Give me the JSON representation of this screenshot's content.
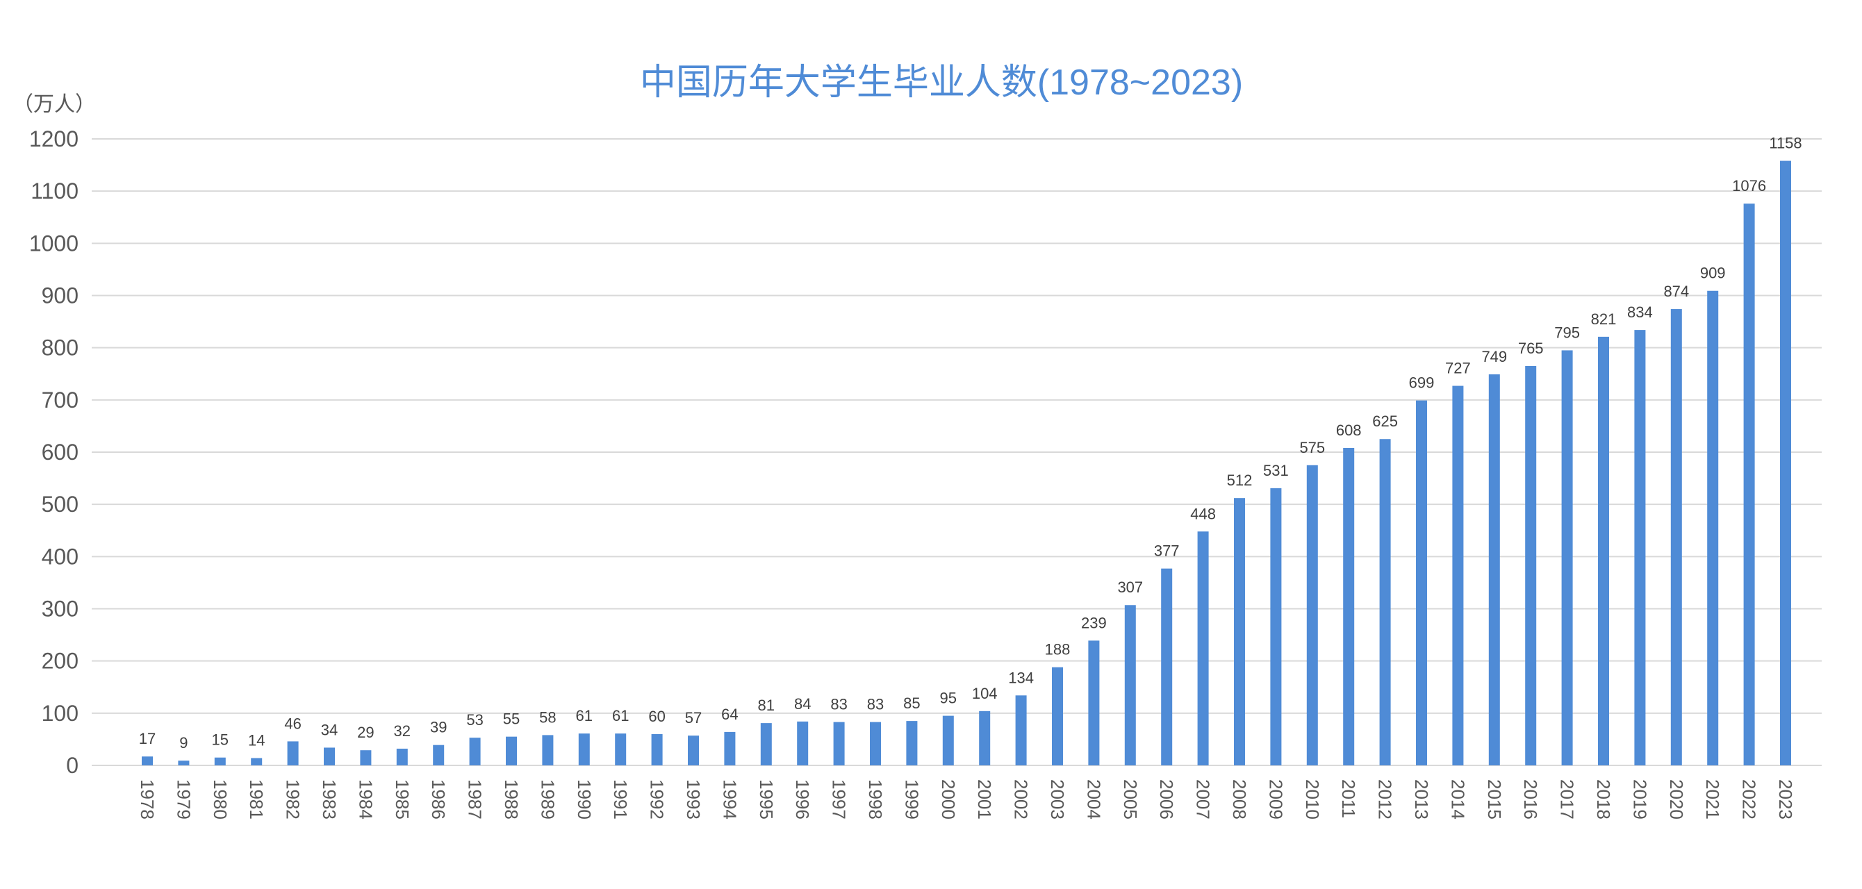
{
  "chart_data": {
    "type": "bar",
    "title": "中国历年大学生毕业人数(1978~2023)",
    "ylabel": "（万人）",
    "xlabel": "",
    "ylim": [
      0,
      1200
    ],
    "yticks": [
      0,
      100,
      200,
      300,
      400,
      500,
      600,
      700,
      800,
      900,
      1000,
      1100,
      1200
    ],
    "grid": true,
    "legend": "none",
    "colors": {
      "bar": "#4f8bd6",
      "title": "#4f8bd6",
      "grid": "#d9d9d9",
      "tick_text": "#595959",
      "data_label": "#404040"
    },
    "categories": [
      "1978",
      "1979",
      "1980",
      "1981",
      "1982",
      "1983",
      "1984",
      "1985",
      "1986",
      "1987",
      "1988",
      "1989",
      "1990",
      "1991",
      "1992",
      "1993",
      "1994",
      "1995",
      "1996",
      "1997",
      "1998",
      "1999",
      "2000",
      "2001",
      "2002",
      "2003",
      "2004",
      "2005",
      "2006",
      "2007",
      "2008",
      "2009",
      "2010",
      "2011",
      "2012",
      "2013",
      "2014",
      "2015",
      "2016",
      "2017",
      "2018",
      "2019",
      "2020",
      "2021",
      "2022",
      "2023"
    ],
    "values": [
      17,
      9,
      15,
      14,
      46,
      34,
      29,
      32,
      39,
      53,
      55,
      58,
      61,
      61,
      60,
      57,
      64,
      81,
      84,
      83,
      83,
      85,
      95,
      104,
      134,
      188,
      239,
      307,
      377,
      448,
      512,
      531,
      575,
      608,
      625,
      699,
      727,
      749,
      765,
      795,
      821,
      834,
      874,
      909,
      1076,
      1158
    ]
  }
}
